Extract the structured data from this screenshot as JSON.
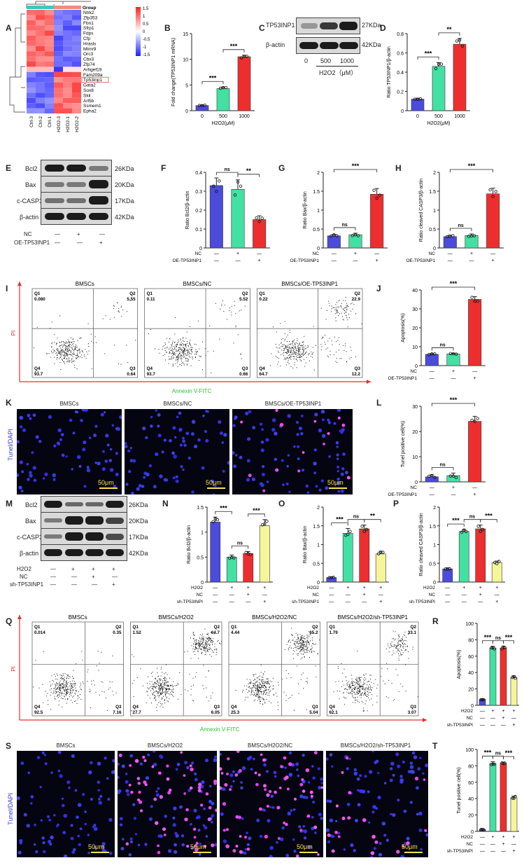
{
  "panels": {
    "A": {
      "label": "A",
      "group_label": "Group",
      "genes": [
        "Ntrk2",
        "Zfp353",
        "Fbn1",
        "Sfrp1",
        "Fdps",
        "Cfp",
        "Hrasls",
        "Mtmr9",
        "Orc3",
        "Cbx3",
        "Zfp74",
        "Arhgef19",
        "Fam209a",
        "Tp53inp1",
        "Gata2",
        "Sox8",
        "Skil",
        "Arl5b",
        "Ssmem1",
        "Epha2"
      ],
      "samples": [
        "Ctrl-3",
        "Ctrl-2",
        "Ctrl-1",
        "H2O2-3",
        "H2O2-1",
        "H2O2-2"
      ],
      "colorbar_ticks": [
        "1.5",
        "1",
        "0.5",
        "0",
        "-0.5",
        "-1",
        "-1.5"
      ],
      "group_colors": {
        "ctrl": "#3ec7c2",
        "h2o2": "#f08d7c"
      }
    },
    "B": {
      "label": "B"
    },
    "C": {
      "label": "C"
    },
    "D": {
      "label": "D"
    },
    "E": {
      "label": "E"
    },
    "F": {
      "label": "F"
    },
    "G": {
      "label": "G"
    },
    "H": {
      "label": "H"
    },
    "I": {
      "label": "I"
    },
    "J": {
      "label": "J"
    },
    "K": {
      "label": "K"
    },
    "L": {
      "label": "L"
    },
    "M": {
      "label": "M"
    },
    "N": {
      "label": "N"
    },
    "O": {
      "label": "O"
    },
    "P": {
      "label": "P"
    },
    "Q": {
      "label": "Q"
    },
    "R": {
      "label": "R"
    },
    "S": {
      "label": "S"
    },
    "T": {
      "label": "T"
    }
  },
  "blot_C": {
    "proteins": [
      "TP53INP1",
      "β-actin"
    ],
    "sizes": [
      "27KDa",
      "42KDa"
    ],
    "lanes": [
      "0",
      "500",
      "1000"
    ],
    "xlabel": "H2O2（μM）"
  },
  "blot_E": {
    "proteins": [
      "Bcl2",
      "Bax",
      "c-CASP3",
      "β-actin"
    ],
    "sizes": [
      "26KDa",
      "20KDa",
      "17KDa",
      "42KDa"
    ],
    "rows": [
      {
        "name": "NC",
        "marks": [
          "—",
          "+",
          "—"
        ]
      },
      {
        "name": "OE-TP53INP1",
        "marks": [
          "—",
          "—",
          "+"
        ]
      }
    ]
  },
  "blot_M": {
    "proteins": [
      "Bcl2",
      "Bax",
      "c-CASP3",
      "β-actin"
    ],
    "sizes": [
      "26KDa",
      "20KDa",
      "17KDa",
      "42KDa"
    ],
    "rows": [
      {
        "name": "H2O2",
        "marks": [
          "—",
          "+",
          "+",
          "+"
        ]
      },
      {
        "name": "NC",
        "marks": [
          "—",
          "—",
          "+",
          "—"
        ]
      },
      {
        "name": "sh-TP53INP1",
        "marks": [
          "—",
          "—",
          "—",
          "+"
        ]
      }
    ]
  },
  "flow_I": {
    "ylabel": "PI",
    "xlabel": "Annexin V-FITC",
    "plots": [
      {
        "title": "BMSCs",
        "q1": "0.080",
        "q2": "5.55",
        "q3": "0.64",
        "q4": "93.7"
      },
      {
        "title": "BMSCs/NC",
        "q1": "0.11",
        "q2": "5.52",
        "q3": "0.66",
        "q4": "93.7"
      },
      {
        "title": "BMSCs/OE-TP53INP1",
        "q1": "0.22",
        "q2": "22.9",
        "q3": "12.2",
        "q4": "64.7"
      }
    ]
  },
  "flow_Q": {
    "ylabel": "PI",
    "xlabel": "Annexin V-FITC",
    "plots": [
      {
        "title": "BMSCs",
        "q1": "0.014",
        "q2": "0.35",
        "q3": "7.16",
        "q4": "92.5"
      },
      {
        "title": "BMSCs/H2O2",
        "q1": "1.52",
        "q2": "64.7",
        "q3": "6.05",
        "q4": "27.7"
      },
      {
        "title": "BMSCs/H2O2/NC",
        "q1": "4.44",
        "q2": "65.2",
        "q3": "5.04",
        "q4": "25.3"
      },
      {
        "title": "BMSCs/H2O2/sh-TP53INP1",
        "q1": "1.79",
        "q2": "33.1",
        "q3": "3.07",
        "q4": "62.1"
      }
    ]
  },
  "tunel_K": {
    "ylabel": "Tunel/DAPI",
    "titles": [
      "BMSCs",
      "BMSCs/NC",
      "BMSCs/OE-TP53INP1"
    ],
    "scale": "50μm"
  },
  "tunel_S": {
    "ylabel": "Tunel/DAPI",
    "titles": [
      "BMSCs",
      "BMSCs/H2O2",
      "BMSCs/H2O2/NC",
      "BMSCs/H2O2/sh-TP53INP1"
    ],
    "scale": "50μm"
  },
  "chart_data": [
    {
      "id": "B",
      "type": "bar",
      "ylabel": "Fold change(TP53INP1 mRNA)",
      "xlabel": "H2O2(μM)",
      "categories": [
        "0",
        "500",
        "1000"
      ],
      "values": [
        1.0,
        4.3,
        10.5
      ],
      "err": [
        0.1,
        0.3,
        0.3
      ],
      "ylim": [
        0,
        15
      ],
      "yticks": [
        0,
        5,
        10,
        15
      ],
      "colors": [
        "#4b4bdc",
        "#43e0a3",
        "#ee2e2e"
      ],
      "sig": [
        {
          "a": 0,
          "b": 1,
          "t": "***",
          "lvl": 0
        },
        {
          "a": 1,
          "b": 2,
          "t": "***",
          "lvl": 0
        }
      ],
      "rows": []
    },
    {
      "id": "D",
      "type": "bar",
      "ylabel": "Ratio TP53INP1/β-actin",
      "xlabel": "H2O2(μM)",
      "categories": [
        "0",
        "500",
        "1000"
      ],
      "values": [
        0.12,
        0.46,
        0.69
      ],
      "err": [
        0.01,
        0.04,
        0.06
      ],
      "ylim": [
        0,
        0.8
      ],
      "yticks": [
        0,
        0.2,
        0.4,
        0.6,
        0.8
      ],
      "colors": [
        "#4b4bdc",
        "#43e0a3",
        "#ee2e2e"
      ],
      "sig": [
        {
          "a": 0,
          "b": 1,
          "t": "***",
          "lvl": 0
        },
        {
          "a": 1,
          "b": 2,
          "t": "**",
          "lvl": 0
        }
      ],
      "rows": []
    },
    {
      "id": "F",
      "type": "bar",
      "ylabel": "Ratio Bcl2/β-actin",
      "xlabel": "",
      "categories": [
        "1",
        "2",
        "3"
      ],
      "values": [
        0.33,
        0.31,
        0.15
      ],
      "err": [
        0.04,
        0.05,
        0.02
      ],
      "ylim": [
        0,
        0.4
      ],
      "yticks": [
        0,
        0.1,
        0.2,
        0.3,
        0.4
      ],
      "colors": [
        "#4b4bdc",
        "#43e0a3",
        "#ee2e2e"
      ],
      "sig": [
        {
          "a": 0,
          "b": 1,
          "t": "ns",
          "lvl": 0
        },
        {
          "a": 1,
          "b": 2,
          "t": "**",
          "lvl": 0
        }
      ],
      "rows": [
        {
          "name": "NC",
          "marks": [
            "—",
            "+",
            "—"
          ]
        },
        {
          "name": "OE-TP53INP1",
          "marks": [
            "—",
            "—",
            "+"
          ]
        }
      ]
    },
    {
      "id": "G",
      "type": "bar",
      "ylabel": "Ratio Bax/β-actin",
      "xlabel": "",
      "categories": [
        "1",
        "2",
        "3"
      ],
      "values": [
        0.32,
        0.35,
        1.42
      ],
      "err": [
        0.04,
        0.04,
        0.15
      ],
      "ylim": [
        0,
        2.0
      ],
      "yticks": [
        0,
        0.5,
        1.0,
        1.5,
        2.0
      ],
      "colors": [
        "#4b4bdc",
        "#43e0a3",
        "#ee2e2e"
      ],
      "sig": [
        {
          "a": 0,
          "b": 1,
          "t": "ns",
          "lvl": 0
        },
        {
          "a": 0,
          "b": 2,
          "t": "***",
          "lvl": 1
        }
      ],
      "rows": [
        {
          "name": "NC",
          "marks": [
            "—",
            "+",
            "—"
          ]
        },
        {
          "name": "OE-TP53INP1",
          "marks": [
            "—",
            "—",
            "+"
          ]
        }
      ]
    },
    {
      "id": "H",
      "type": "bar",
      "ylabel": "Ratio cleaved CASP3/β-actin",
      "xlabel": "",
      "categories": [
        "1",
        "2",
        "3"
      ],
      "values": [
        0.3,
        0.33,
        1.43
      ],
      "err": [
        0.04,
        0.04,
        0.15
      ],
      "ylim": [
        0,
        2.0
      ],
      "yticks": [
        0,
        0.5,
        1.0,
        1.5,
        2.0
      ],
      "colors": [
        "#4b4bdc",
        "#43e0a3",
        "#ee2e2e"
      ],
      "sig": [
        {
          "a": 0,
          "b": 1,
          "t": "ns",
          "lvl": 0
        },
        {
          "a": 0,
          "b": 2,
          "t": "***",
          "lvl": 1
        }
      ],
      "rows": [
        {
          "name": "NC",
          "marks": [
            "—",
            "+",
            "—"
          ]
        },
        {
          "name": "OE-TP53INP1",
          "marks": [
            "—",
            "—",
            "+"
          ]
        }
      ]
    },
    {
      "id": "J",
      "type": "bar",
      "ylabel": "Apoptosis(%)",
      "xlabel": "",
      "categories": [
        "1",
        "2",
        "3"
      ],
      "values": [
        6.0,
        6.2,
        35.0
      ],
      "err": [
        0.3,
        0.3,
        1.5
      ],
      "ylim": [
        0,
        40
      ],
      "yticks": [
        0,
        10,
        20,
        30,
        40
      ],
      "colors": [
        "#4b4bdc",
        "#43e0a3",
        "#ee2e2e"
      ],
      "sig": [
        {
          "a": 0,
          "b": 1,
          "t": "ns",
          "lvl": 0
        },
        {
          "a": 0,
          "b": 2,
          "t": "***",
          "lvl": 1
        }
      ],
      "rows": [
        {
          "name": "NC",
          "marks": [
            "—",
            "+",
            "—"
          ]
        },
        {
          "name": "OE-TP53INP1",
          "marks": [
            "—",
            "—",
            "+"
          ]
        }
      ]
    },
    {
      "id": "L",
      "type": "bar",
      "ylabel": "Tunel positive cell(%)",
      "xlabel": "",
      "categories": [
        "1",
        "2",
        "3"
      ],
      "values": [
        2.0,
        2.5,
        24.0
      ],
      "err": [
        0.8,
        1.0,
        2.0
      ],
      "ylim": [
        0,
        30
      ],
      "yticks": [
        0,
        10,
        20,
        30
      ],
      "colors": [
        "#4b4bdc",
        "#43e0a3",
        "#ee2e2e"
      ],
      "sig": [
        {
          "a": 0,
          "b": 1,
          "t": "ns",
          "lvl": 0
        },
        {
          "a": 0,
          "b": 2,
          "t": "***",
          "lvl": 1
        }
      ],
      "rows": [
        {
          "name": "NC",
          "marks": [
            "—",
            "+",
            "—"
          ]
        },
        {
          "name": "OE-TP53INP1",
          "marks": [
            "—",
            "—",
            "+"
          ]
        }
      ]
    },
    {
      "id": "N",
      "type": "bar",
      "ylabel": "Ratio Bcl2/β-actin",
      "xlabel": "",
      "categories": [
        "1",
        "2",
        "3",
        "4"
      ],
      "values": [
        1.2,
        0.5,
        0.57,
        1.13
      ],
      "err": [
        0.1,
        0.04,
        0.04,
        0.12
      ],
      "ylim": [
        0,
        1.5
      ],
      "yticks": [
        0,
        0.5,
        1.0,
        1.5
      ],
      "colors": [
        "#4b4bdc",
        "#43e0a3",
        "#ee2e2e",
        "#f6f59a"
      ],
      "sig": [
        {
          "a": 0,
          "b": 1,
          "t": "***",
          "lvl": 0
        },
        {
          "a": 1,
          "b": 2,
          "t": "ns",
          "lvl": 0
        },
        {
          "a": 2,
          "b": 3,
          "t": "***",
          "lvl": 0
        }
      ],
      "rows": [
        {
          "name": "H2O2",
          "marks": [
            "—",
            "+",
            "+",
            "+"
          ]
        },
        {
          "name": "NC",
          "marks": [
            "—",
            "—",
            "+",
            "—"
          ]
        },
        {
          "name": "sh-TP53INPI",
          "marks": [
            "—",
            "—",
            "—",
            "+"
          ]
        }
      ]
    },
    {
      "id": "O",
      "type": "bar",
      "ylabel": "Ratio Bax/β-actin",
      "xlabel": "",
      "categories": [
        "1",
        "2",
        "3",
        "4"
      ],
      "values": [
        0.12,
        1.3,
        1.42,
        0.75
      ],
      "err": [
        0.02,
        0.13,
        0.1,
        0.07
      ],
      "ylim": [
        0,
        2.0
      ],
      "yticks": [
        0,
        0.5,
        1.0,
        1.5,
        2.0
      ],
      "colors": [
        "#4b4bdc",
        "#43e0a3",
        "#ee2e2e",
        "#f6f59a"
      ],
      "sig": [
        {
          "a": 0,
          "b": 1,
          "t": "***",
          "lvl": 0
        },
        {
          "a": 1,
          "b": 2,
          "t": "ns",
          "lvl": 0
        },
        {
          "a": 2,
          "b": 3,
          "t": "**",
          "lvl": 0
        }
      ],
      "rows": [
        {
          "name": "H2O2",
          "marks": [
            "—",
            "+",
            "+",
            "+"
          ]
        },
        {
          "name": "NC",
          "marks": [
            "—",
            "—",
            "+",
            "—"
          ]
        },
        {
          "name": "sh-TP53INP1",
          "marks": [
            "—",
            "—",
            "—",
            "+"
          ]
        }
      ]
    },
    {
      "id": "P",
      "type": "bar",
      "ylabel": "Ratio cleaved CASP3/β-actin",
      "xlabel": "",
      "categories": [
        "1",
        "2",
        "3",
        "4"
      ],
      "values": [
        0.35,
        1.35,
        1.42,
        0.52
      ],
      "err": [
        0.03,
        0.05,
        0.1,
        0.04
      ],
      "ylim": [
        0,
        2.0
      ],
      "yticks": [
        0,
        0.5,
        1.0,
        1.5,
        2.0
      ],
      "colors": [
        "#4b4bdc",
        "#43e0a3",
        "#ee2e2e",
        "#f6f59a"
      ],
      "sig": [
        {
          "a": 0,
          "b": 1,
          "t": "***",
          "lvl": 0
        },
        {
          "a": 1,
          "b": 2,
          "t": "ns",
          "lvl": 0
        },
        {
          "a": 2,
          "b": 3,
          "t": "***",
          "lvl": 0
        }
      ],
      "rows": [
        {
          "name": "H2O2",
          "marks": [
            "—",
            "+",
            "+",
            "+"
          ]
        },
        {
          "name": "NC",
          "marks": [
            "—",
            "—",
            "+",
            "—"
          ]
        },
        {
          "name": "sh-TP53INPI",
          "marks": [
            "—",
            "—",
            "—",
            "+"
          ]
        }
      ]
    },
    {
      "id": "R",
      "type": "bar",
      "ylabel": "Apoptosis(%)",
      "xlabel": "",
      "categories": [
        "1",
        "2",
        "3",
        "4"
      ],
      "values": [
        7.0,
        70.0,
        70.0,
        34.0
      ],
      "err": [
        0.5,
        2.0,
        2.0,
        2.0
      ],
      "ylim": [
        0,
        100
      ],
      "yticks": [
        0,
        20,
        40,
        60,
        80,
        100
      ],
      "colors": [
        "#4b4bdc",
        "#43e0a3",
        "#ee2e2e",
        "#f6f59a"
      ],
      "sig": [
        {
          "a": 0,
          "b": 1,
          "t": "***",
          "lvl": 0
        },
        {
          "a": 1,
          "b": 2,
          "t": "ns",
          "lvl": 0
        },
        {
          "a": 2,
          "b": 3,
          "t": "***",
          "lvl": 0
        }
      ],
      "rows": [
        {
          "name": "H2O2",
          "marks": [
            "—",
            "+",
            "+",
            "+"
          ]
        },
        {
          "name": "NC",
          "marks": [
            "—",
            "—",
            "+",
            "—"
          ]
        },
        {
          "name": "sh-TP53INPI",
          "marks": [
            "—",
            "—",
            "—",
            "+"
          ]
        }
      ]
    },
    {
      "id": "T",
      "type": "bar",
      "ylabel": "Tunel positive cell(%)",
      "xlabel": "",
      "categories": [
        "1",
        "2",
        "3",
        "4"
      ],
      "values": [
        2.0,
        83.0,
        83.0,
        41.0
      ],
      "err": [
        0.8,
        2.0,
        1.5,
        2.0
      ],
      "ylim": [
        0,
        100
      ],
      "yticks": [
        0,
        20,
        40,
        60,
        80,
        100
      ],
      "colors": [
        "#4b4bdc",
        "#43e0a3",
        "#ee2e2e",
        "#f6f59a"
      ],
      "sig": [
        {
          "a": 0,
          "b": 1,
          "t": "***",
          "lvl": 0
        },
        {
          "a": 1,
          "b": 2,
          "t": "ns",
          "lvl": 0
        },
        {
          "a": 2,
          "b": 3,
          "t": "***",
          "lvl": 0
        }
      ],
      "rows": [
        {
          "name": "H2O2",
          "marks": [
            "—",
            "+",
            "+",
            "+"
          ]
        },
        {
          "name": "NC",
          "marks": [
            "—",
            "—",
            "+",
            "—"
          ]
        },
        {
          "name": "sh-TP53INPI",
          "marks": [
            "—",
            "—",
            "—",
            "+"
          ]
        }
      ]
    }
  ]
}
